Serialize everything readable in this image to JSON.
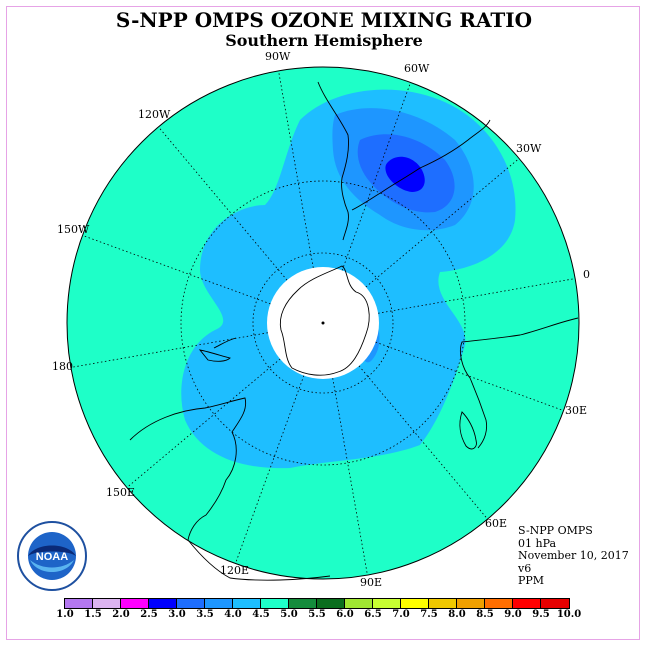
{
  "header": {
    "title": "S-NPP OMPS OZONE MIXING RATIO",
    "subtitle": "Southern Hemisphere"
  },
  "map": {
    "projection": "south-polar-stereographic",
    "longitude_labels": [
      "90W",
      "60W",
      "30W",
      "0",
      "30E",
      "60E",
      "90E",
      "120E",
      "150E",
      "180",
      "150W",
      "120W"
    ],
    "background_level_color": "#1effc8",
    "regions": [
      {
        "range": "4.0-4.5",
        "color": "#1ebeff"
      },
      {
        "range": "3.5-4.0",
        "color": "#1e96ff"
      },
      {
        "range": "3.0-3.5",
        "color": "#1e6eff"
      },
      {
        "range": "2.5-3.0",
        "color": "#0000ff"
      }
    ],
    "polar_night_color": "#ffffff"
  },
  "info": {
    "instrument": "S-NPP OMPS",
    "level": "01 hPa",
    "date": "November 10, 2017",
    "version": "v6",
    "units": "PPM"
  },
  "colorbar": {
    "ticks": [
      "1.0",
      "1.5",
      "2.0",
      "2.5",
      "3.0",
      "3.5",
      "4.0",
      "4.5",
      "5.0",
      "5.5",
      "6.0",
      "6.5",
      "7.0",
      "7.5",
      "8.0",
      "8.5",
      "9.0",
      "9.5",
      "10.0"
    ],
    "colors": [
      "#b478f0",
      "#dcb4f0",
      "#ff00ff",
      "#0000ff",
      "#1e6eff",
      "#1e96ff",
      "#1ebeff",
      "#1effc8",
      "#148c3c",
      "#0a6e1e",
      "#a0e632",
      "#c8ff32",
      "#ffff00",
      "#f0c800",
      "#f0a000",
      "#ff6e00",
      "#ff0000",
      "#e60000",
      "#8c5a3c"
    ]
  },
  "logo": {
    "text": "NOAA"
  }
}
